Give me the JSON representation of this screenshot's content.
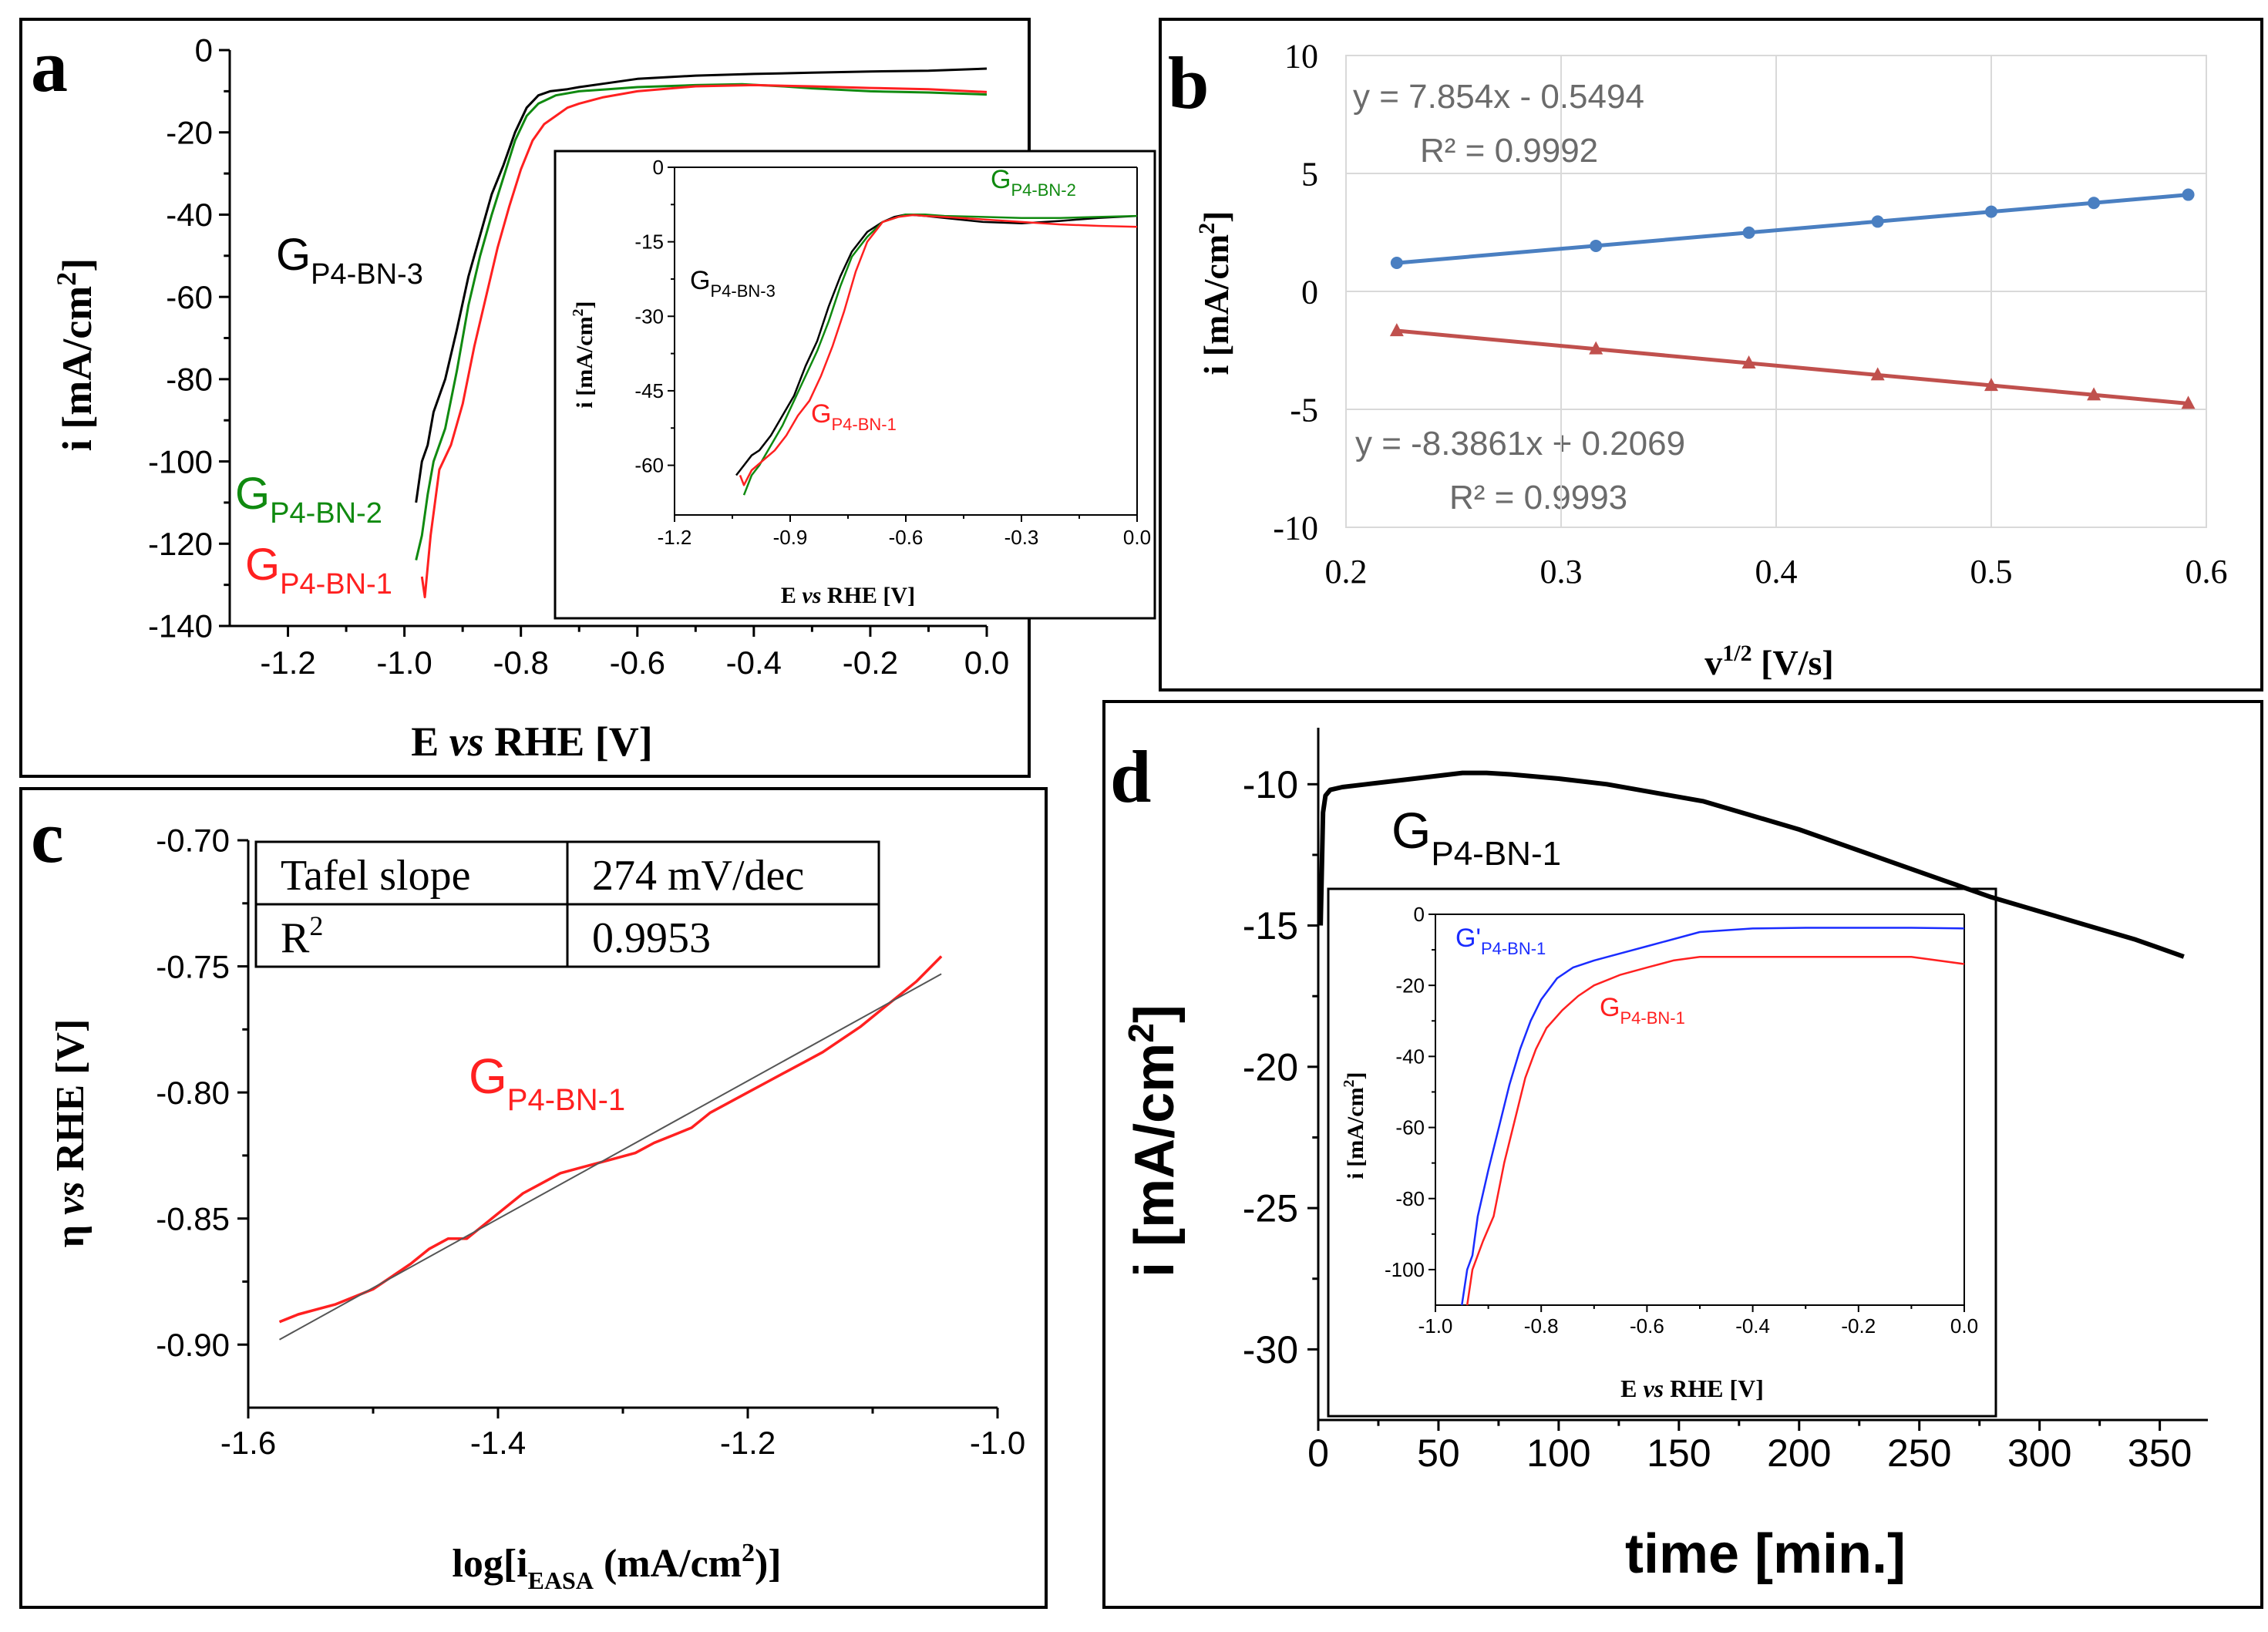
{
  "colors": {
    "black": "#000000",
    "red": "#ff2020",
    "green": "#108a10",
    "blue": "#1a2cff",
    "excel_blue": "#4a7fc1",
    "excel_red": "#c0504d",
    "grid": "#d9d9d9",
    "eq_text": "#6b6b6b",
    "fit_line": "#555555"
  },
  "panels": {
    "a": {
      "letter": "a",
      "xlabel": {
        "pre": "E ",
        "it": "vs",
        "post": " RHE [V]"
      },
      "ylabel": {
        "pre": "i [mA/cm",
        "sup": "2",
        "post": "]"
      },
      "labels": {
        "bn3": {
          "main": "G",
          "sub": "P4-BN-3"
        },
        "bn2": {
          "main": "G",
          "sub": "P4-BN-2"
        },
        "bn1": {
          "main": "G",
          "sub": "P4-BN-1"
        }
      },
      "inset": {
        "xlabel": {
          "pre": "E ",
          "it": "vs",
          "post": " RHE [V]"
        },
        "ylabel": {
          "pre": "i [mA/cm",
          "sup": "2",
          "post": "]"
        },
        "labels": {
          "bn2": {
            "main": "G",
            "sub": "P4-BN-2"
          },
          "bn3": {
            "main": "G",
            "sub": "P4-BN-3"
          },
          "bn1": {
            "main": "G",
            "sub": "P4-BN-1"
          }
        }
      }
    },
    "b": {
      "letter": "b",
      "xlabel": {
        "pre": "v",
        "sup": "1/2",
        "post": " [V/s]"
      },
      "ylabel": {
        "pre": "i [mA/cm",
        "sup": "2",
        "post": "]"
      },
      "eq1": "y = 7.854x - 0.5494",
      "r1": "R² = 0.9992",
      "eq2": "y = -8.3861x + 0.2069",
      "r2": "R² = 0.9993"
    },
    "c": {
      "letter": "c",
      "xlabel": {
        "pre": "log[i",
        "sub": "EASA",
        "mid": " (mA/cm",
        "sup": "2",
        "post": ")]"
      },
      "ylabel": {
        "pre": "η ",
        "it": "vs",
        "post": " RHE [V]"
      },
      "table": {
        "r1c1": "Tafel slope",
        "r1c2": "274 mV/dec",
        "r2c1_main": "R",
        "r2c1_sup": "2",
        "r2c2": "0.9953"
      },
      "label": {
        "main": "G",
        "sub": "P4-BN-1"
      }
    },
    "d": {
      "letter": "d",
      "xlabel": "time [min.]",
      "ylabel": {
        "pre": "i [mA/cm",
        "sup": "2",
        "post": "]"
      },
      "label": {
        "main": "G",
        "sub": "P4-BN-1"
      },
      "inset": {
        "xlabel": {
          "pre": "E ",
          "it": "vs",
          "post": " RHE [V]"
        },
        "ylabel": {
          "pre": "i [mA/cm",
          "sup": "2",
          "post": "]"
        },
        "label_blue": {
          "main": "G'",
          "sub": "P4-BN-1"
        },
        "label_red": {
          "main": "G",
          "sub": "P4-BN-1"
        }
      }
    }
  },
  "chart_data": [
    {
      "panel": "a",
      "type": "line",
      "xlabel": "E vs RHE [V]",
      "ylabel": "i [mA/cm2]",
      "xlim": [
        -1.3,
        0.0
      ],
      "ylim": [
        -140,
        0
      ],
      "xticks": [
        -1.2,
        -1.0,
        -0.8,
        -0.6,
        -0.4,
        -0.2,
        0.0
      ],
      "xtick_labels": [
        "-1.2",
        "-1.0",
        "-0.8",
        "-0.6",
        "-0.4",
        "-0.2",
        "0.0"
      ],
      "yticks": [
        0,
        -20,
        -40,
        -60,
        -80,
        -100,
        -120,
        -140
      ],
      "ytick_labels": [
        "0",
        "-20",
        "-40",
        "-60",
        "-80",
        "-100",
        "-120",
        "-140"
      ],
      "series": [
        {
          "name": "GP4-BN-3",
          "color": "#000000",
          "x": [
            -0.98,
            -0.97,
            -0.96,
            -0.95,
            -0.93,
            -0.91,
            -0.89,
            -0.87,
            -0.85,
            -0.83,
            -0.81,
            -0.79,
            -0.77,
            -0.75,
            -0.72,
            -0.7,
            -0.65,
            -0.6,
            -0.5,
            -0.4,
            -0.3,
            -0.2,
            -0.1,
            0.0
          ],
          "y": [
            -110,
            -100,
            -96,
            -88,
            -80,
            -68,
            -55,
            -45,
            -35,
            -28,
            -20,
            -14,
            -11,
            -10,
            -9.5,
            -9,
            -8,
            -7,
            -6.2,
            -5.8,
            -5.5,
            -5.2,
            -5,
            -4.5
          ]
        },
        {
          "name": "GP4-BN-2",
          "color": "#108a10",
          "x": [
            -0.98,
            -0.97,
            -0.96,
            -0.95,
            -0.93,
            -0.91,
            -0.89,
            -0.87,
            -0.85,
            -0.83,
            -0.81,
            -0.79,
            -0.77,
            -0.74,
            -0.7,
            -0.65,
            -0.6,
            -0.5,
            -0.42,
            -0.35,
            -0.3,
            -0.2,
            -0.1,
            0.0
          ],
          "y": [
            -124,
            -118,
            -108,
            -100,
            -92,
            -78,
            -62,
            -50,
            -40,
            -31,
            -22,
            -16,
            -13,
            -11,
            -10,
            -9.5,
            -9,
            -8.5,
            -8.3,
            -8.8,
            -9.3,
            -10,
            -10.3,
            -10.8
          ]
        },
        {
          "name": "GP4-BN-1",
          "color": "#ff2020",
          "x": [
            -0.97,
            -0.965,
            -0.955,
            -0.94,
            -0.92,
            -0.9,
            -0.88,
            -0.86,
            -0.84,
            -0.82,
            -0.8,
            -0.78,
            -0.76,
            -0.74,
            -0.72,
            -0.7,
            -0.66,
            -0.6,
            -0.5,
            -0.4,
            -0.3,
            -0.2,
            -0.1,
            0.0
          ],
          "y": [
            -128,
            -133,
            -118,
            -102,
            -96,
            -86,
            -72,
            -60,
            -48,
            -38,
            -29,
            -22,
            -18,
            -16,
            -14,
            -13,
            -11.5,
            -10,
            -8.8,
            -8.5,
            -8.8,
            -9.2,
            -9.5,
            -10.2
          ]
        }
      ],
      "inset": {
        "xlabel": "E vs RHE [V]",
        "ylabel": "i [mA/cm2]",
        "xlim": [
          -1.2,
          0.0
        ],
        "ylim": [
          -70,
          0
        ],
        "xticks": [
          -1.2,
          -0.9,
          -0.6,
          -0.3,
          0.0
        ],
        "xtick_labels": [
          "-1.2",
          "-0.9",
          "-0.6",
          "-0.3",
          "0.0"
        ],
        "yticks": [
          0,
          -15,
          -30,
          -45,
          -60
        ],
        "ytick_labels": [
          "0",
          "-15",
          "-30",
          "-45",
          "-60"
        ],
        "series": [
          {
            "name": "GP4-BN-3",
            "color": "#000000",
            "x": [
              -1.04,
              -1.02,
              -1.0,
              -0.98,
              -0.95,
              -0.92,
              -0.89,
              -0.86,
              -0.83,
              -0.8,
              -0.77,
              -0.74,
              -0.7,
              -0.66,
              -0.63,
              -0.6,
              -0.55,
              -0.5,
              -0.4,
              -0.3,
              -0.2,
              -0.1,
              0.0
            ],
            "y": [
              -62,
              -60,
              -58,
              -57,
              -54,
              -50,
              -46,
              -40,
              -35,
              -28,
              -22,
              -17,
              -13,
              -11,
              -10,
              -9.5,
              -9.8,
              -10.2,
              -11,
              -11.3,
              -10.8,
              -10.2,
              -9.8
            ]
          },
          {
            "name": "GP4-BN-2",
            "color": "#108a10",
            "x": [
              -1.02,
              -1.0,
              -0.98,
              -0.95,
              -0.92,
              -0.89,
              -0.86,
              -0.83,
              -0.8,
              -0.77,
              -0.74,
              -0.7,
              -0.66,
              -0.62,
              -0.6,
              -0.55,
              -0.5,
              -0.4,
              -0.3,
              -0.2,
              -0.1,
              0.0
            ],
            "y": [
              -66,
              -62,
              -60,
              -56,
              -52,
              -47,
              -42,
              -37,
              -31,
              -24,
              -18,
              -14,
              -11,
              -10,
              -9.5,
              -9.5,
              -9.8,
              -10,
              -10.2,
              -10.2,
              -10,
              -9.8
            ]
          },
          {
            "name": "GP4-BN-1",
            "color": "#ff2020",
            "x": [
              -1.03,
              -1.02,
              -1.0,
              -0.97,
              -0.94,
              -0.91,
              -0.88,
              -0.85,
              -0.82,
              -0.79,
              -0.76,
              -0.73,
              -0.7,
              -0.66,
              -0.62,
              -0.58,
              -0.55,
              -0.5,
              -0.4,
              -0.3,
              -0.2,
              -0.1,
              0.0
            ],
            "y": [
              -62,
              -64,
              -61,
              -59,
              -57,
              -54,
              -50,
              -47,
              -42,
              -36,
              -29,
              -21,
              -15,
              -11,
              -10,
              -9.6,
              -9.8,
              -10,
              -10.5,
              -11,
              -11.5,
              -11.8,
              -12
            ]
          }
        ]
      }
    },
    {
      "panel": "b",
      "type": "scatter",
      "xlabel": "v1/2 [V/s]",
      "ylabel": "i [mA/cm2]",
      "xlim": [
        0.2,
        0.6
      ],
      "ylim": [
        -10,
        10
      ],
      "grid": true,
      "xticks": [
        0.2,
        0.3,
        0.4,
        0.5,
        0.6
      ],
      "xtick_labels": [
        "0.2",
        "0.3",
        "0.4",
        "0.5",
        "0.6"
      ],
      "yticks": [
        10,
        5,
        0,
        -5,
        -10
      ],
      "ytick_labels": [
        "10",
        "5",
        "0",
        "-5",
        "-10"
      ],
      "series": [
        {
          "marker": "circle",
          "color": "#4a7fc1",
          "x": [
            0.2236,
            0.3162,
            0.3873,
            0.4472,
            0.5,
            0.5477,
            0.5916
          ],
          "y": [
            1.21,
            1.93,
            2.49,
            2.96,
            3.38,
            3.75,
            4.1
          ]
        },
        {
          "marker": "triangle",
          "color": "#c0504d",
          "x": [
            0.2236,
            0.3162,
            0.3873,
            0.4472,
            0.5,
            0.5477,
            0.5916
          ],
          "y": [
            -1.67,
            -2.44,
            -3.04,
            -3.54,
            -3.99,
            -4.39,
            -4.75
          ]
        }
      ],
      "fits": [
        {
          "slope": 7.854,
          "intercept": -0.5494,
          "r2": 0.9992
        },
        {
          "slope": -8.3861,
          "intercept": 0.2069,
          "r2": 0.9993
        }
      ]
    },
    {
      "panel": "c",
      "type": "line",
      "xlabel": "log[iEASA (mA/cm2)]",
      "ylabel": "η vs RHE [V]",
      "xlim": [
        -1.6,
        -1.0
      ],
      "ylim": [
        -0.925,
        -0.7
      ],
      "xticks": [
        -1.6,
        -1.4,
        -1.2,
        -1.0
      ],
      "xtick_labels": [
        "-1.6",
        "-1.4",
        "-1.2",
        "-1.0"
      ],
      "yticks": [
        -0.7,
        -0.75,
        -0.8,
        -0.85,
        -0.9
      ],
      "ytick_labels": [
        "-0.70",
        "-0.75",
        "-0.80",
        "-0.85",
        "-0.90"
      ],
      "series": [
        {
          "name": "GP4-BN-1",
          "color": "#ff2020",
          "x": [
            -1.575,
            -1.56,
            -1.545,
            -1.53,
            -1.515,
            -1.5,
            -1.485,
            -1.47,
            -1.455,
            -1.44,
            -1.425,
            -1.41,
            -1.395,
            -1.38,
            -1.365,
            -1.35,
            -1.335,
            -1.32,
            -1.305,
            -1.29,
            -1.275,
            -1.26,
            -1.245,
            -1.235,
            -1.23,
            -1.215,
            -1.2,
            -1.185,
            -1.17,
            -1.155,
            -1.14,
            -1.125,
            -1.11,
            -1.095,
            -1.08,
            -1.065,
            -1.045
          ],
          "y": [
            -0.891,
            -0.888,
            -0.886,
            -0.884,
            -0.881,
            -0.878,
            -0.873,
            -0.868,
            -0.862,
            -0.858,
            -0.858,
            -0.852,
            -0.846,
            -0.84,
            -0.836,
            -0.832,
            -0.83,
            -0.828,
            -0.826,
            -0.824,
            -0.82,
            -0.817,
            -0.814,
            -0.81,
            -0.808,
            -0.804,
            -0.8,
            -0.796,
            -0.792,
            -0.788,
            -0.784,
            -0.779,
            -0.774,
            -0.768,
            -0.762,
            -0.756,
            -0.746
          ]
        },
        {
          "name": "fit",
          "color": "#555555",
          "x": [
            -1.575,
            -1.045
          ],
          "y": [
            -0.898,
            -0.753
          ]
        }
      ]
    },
    {
      "panel": "d",
      "type": "line",
      "xlabel": "time [min.]",
      "ylabel": "i [mA/cm2]",
      "xlim": [
        0,
        370
      ],
      "ylim": [
        -32.5,
        -8
      ],
      "xticks": [
        0,
        50,
        100,
        150,
        200,
        250,
        300,
        350
      ],
      "xtick_labels": [
        "0",
        "50",
        "100",
        "150",
        "200",
        "250",
        "300",
        "350"
      ],
      "yticks": [
        -10,
        -15,
        -20,
        -25,
        -30
      ],
      "ytick_labels": [
        "-10",
        "-15",
        "-20",
        "-25",
        "-30"
      ],
      "series": [
        {
          "name": "GP4-BN-1",
          "color": "#000000",
          "x": [
            1,
            2,
            3,
            5,
            10,
            20,
            40,
            60,
            70,
            80,
            100,
            120,
            140,
            160,
            180,
            200,
            220,
            240,
            260,
            280,
            300,
            320,
            340,
            360
          ],
          "y": [
            -15,
            -11,
            -10.4,
            -10.2,
            -10.1,
            -10.0,
            -9.8,
            -9.6,
            -9.6,
            -9.65,
            -9.8,
            -10.0,
            -10.3,
            -10.6,
            -11.1,
            -11.6,
            -12.2,
            -12.8,
            -13.4,
            -14.0,
            -14.5,
            -15.0,
            -15.5,
            -16.1
          ]
        }
      ],
      "inset": {
        "xlabel": "E vs RHE [V]",
        "ylabel": "i [mA/cm2]",
        "xlim": [
          -1.0,
          0.0
        ],
        "ylim": [
          -110,
          0
        ],
        "xticks": [
          -1.0,
          -0.8,
          -0.6,
          -0.4,
          -0.2,
          0.0
        ],
        "xtick_labels": [
          "-1.0",
          "-0.8",
          "-0.6",
          "-0.4",
          "-0.2",
          "0.0"
        ],
        "yticks": [
          0,
          -20,
          -40,
          -60,
          -80,
          -100
        ],
        "ytick_labels": [
          "0",
          "-20",
          "-40",
          "-60",
          "-80",
          "-100"
        ],
        "series": [
          {
            "name": "G'P4-BN-1",
            "color": "#1a2cff",
            "x": [
              -0.95,
              -0.94,
              -0.93,
              -0.92,
              -0.9,
              -0.88,
              -0.86,
              -0.84,
              -0.82,
              -0.8,
              -0.77,
              -0.74,
              -0.7,
              -0.65,
              -0.6,
              -0.5,
              -0.4,
              -0.3,
              -0.2,
              -0.1,
              0.0
            ],
            "y": [
              -110,
              -100,
              -96,
              -85,
              -72,
              -60,
              -48,
              -38,
              -30,
              -24,
              -18,
              -15,
              -13,
              -11,
              -9,
              -5,
              -4,
              -3.8,
              -3.8,
              -3.8,
              -4
            ]
          },
          {
            "name": "GP4-BN-1",
            "color": "#ff2020",
            "x": [
              -0.94,
              -0.93,
              -0.91,
              -0.89,
              -0.87,
              -0.85,
              -0.83,
              -0.81,
              -0.79,
              -0.76,
              -0.73,
              -0.7,
              -0.65,
              -0.6,
              -0.55,
              -0.5,
              -0.4,
              -0.3,
              -0.2,
              -0.1,
              0.0
            ],
            "y": [
              -110,
              -100,
              -92,
              -85,
              -70,
              -58,
              -46,
              -38,
              -32,
              -27,
              -23,
              -20,
              -17,
              -15,
              -13,
              -12,
              -12,
              -12,
              -12,
              -12,
              -14
            ]
          }
        ]
      }
    }
  ]
}
